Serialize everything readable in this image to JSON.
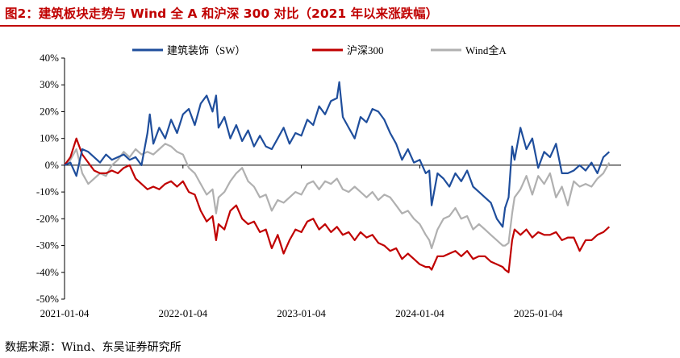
{
  "figure": {
    "title": "图2：建筑板块走势与 Wind 全 A 和沪深 300 对比（2021 年以来涨跌幅）",
    "source": "数据来源：Wind、东吴证券研究所"
  },
  "chart_data": {
    "type": "line",
    "title": "图2：建筑板块走势与 Wind 全 A 和沪深 300 对比（2021 年以来涨跌幅）",
    "xlabel": "",
    "ylabel": "",
    "ylim": [
      -50,
      40
    ],
    "yticks": [
      -50,
      -40,
      -30,
      -20,
      -10,
      0,
      10,
      20,
      30,
      40
    ],
    "ytick_labels": [
      "-50%",
      "-40%",
      "-30%",
      "-20%",
      "-10%",
      "0%",
      "10%",
      "20%",
      "30%",
      "40%"
    ],
    "xlim": [
      2021.0,
      2025.7
    ],
    "xticks": [
      2021.0,
      2022.0,
      2023.0,
      2024.0,
      2025.0
    ],
    "xtick_labels": [
      "2021-01-04",
      "2022-01-04",
      "2023-01-04",
      "2024-01-04",
      "2025-01-04"
    ],
    "legend_position": "top",
    "series": [
      {
        "name": "建筑装饰（SW）",
        "color": "#1f4e9c",
        "x": [
          2021.0,
          2021.05,
          2021.1,
          2021.15,
          2021.2,
          2021.25,
          2021.3,
          2021.35,
          2021.4,
          2021.45,
          2021.5,
          2021.55,
          2021.6,
          2021.65,
          2021.7,
          2021.72,
          2021.75,
          2021.8,
          2021.85,
          2021.9,
          2021.95,
          2022.0,
          2022.05,
          2022.1,
          2022.15,
          2022.2,
          2022.25,
          2022.28,
          2022.3,
          2022.35,
          2022.4,
          2022.45,
          2022.5,
          2022.55,
          2022.6,
          2022.65,
          2022.7,
          2022.75,
          2022.8,
          2022.85,
          2022.9,
          2022.95,
          2023.0,
          2023.05,
          2023.1,
          2023.15,
          2023.2,
          2023.25,
          2023.3,
          2023.32,
          2023.35,
          2023.4,
          2023.45,
          2023.5,
          2023.55,
          2023.6,
          2023.65,
          2023.7,
          2023.75,
          2023.8,
          2023.85,
          2023.9,
          2023.95,
          2024.0,
          2024.05,
          2024.08,
          2024.1,
          2024.15,
          2024.2,
          2024.25,
          2024.3,
          2024.35,
          2024.4,
          2024.45,
          2024.5,
          2024.55,
          2024.6,
          2024.65,
          2024.7,
          2024.72,
          2024.75,
          2024.78,
          2024.8,
          2024.85,
          2024.9,
          2024.95,
          2025.0,
          2025.05,
          2025.1,
          2025.15,
          2025.2,
          2025.25,
          2025.3,
          2025.35,
          2025.4,
          2025.45,
          2025.5,
          2025.55,
          2025.6
        ],
        "values": [
          0,
          1,
          -4,
          6,
          5,
          3,
          1,
          4,
          2,
          3,
          4,
          2,
          3,
          0,
          12,
          19,
          8,
          14,
          10,
          17,
          12,
          19,
          21,
          15,
          23,
          26,
          20,
          26,
          14,
          18,
          10,
          15,
          9,
          13,
          7,
          11,
          7,
          6,
          10,
          14,
          8,
          12,
          11,
          17,
          15,
          22,
          19,
          24,
          25,
          31,
          18,
          14,
          10,
          18,
          16,
          21,
          20,
          17,
          12,
          8,
          2,
          6,
          1,
          2,
          -3,
          -2,
          -15,
          -3,
          -5,
          -8,
          -3,
          -6,
          -2,
          -8,
          -10,
          -12,
          -14,
          -20,
          -23,
          -16,
          -12,
          7,
          2,
          14,
          6,
          10,
          -1,
          5,
          3,
          8,
          -3,
          -3,
          -2,
          0,
          -2,
          1,
          -3,
          3,
          5
        ]
      },
      {
        "name": "沪深300",
        "color": "#c00000",
        "x": [
          2021.0,
          2021.05,
          2021.1,
          2021.15,
          2021.2,
          2021.25,
          2021.3,
          2021.35,
          2021.4,
          2021.45,
          2021.5,
          2021.55,
          2021.6,
          2021.65,
          2021.7,
          2021.75,
          2021.8,
          2021.85,
          2021.9,
          2021.95,
          2022.0,
          2022.05,
          2022.1,
          2022.15,
          2022.2,
          2022.25,
          2022.28,
          2022.3,
          2022.35,
          2022.4,
          2022.45,
          2022.5,
          2022.55,
          2022.6,
          2022.65,
          2022.7,
          2022.75,
          2022.8,
          2022.85,
          2022.9,
          2022.95,
          2023.0,
          2023.05,
          2023.1,
          2023.15,
          2023.2,
          2023.25,
          2023.3,
          2023.35,
          2023.4,
          2023.45,
          2023.5,
          2023.55,
          2023.6,
          2023.65,
          2023.7,
          2023.75,
          2023.8,
          2023.85,
          2023.9,
          2023.95,
          2024.0,
          2024.05,
          2024.08,
          2024.1,
          2024.15,
          2024.2,
          2024.25,
          2024.3,
          2024.35,
          2024.4,
          2024.45,
          2024.5,
          2024.55,
          2024.6,
          2024.65,
          2024.7,
          2024.72,
          2024.75,
          2024.78,
          2024.8,
          2024.85,
          2024.9,
          2024.95,
          2025.0,
          2025.05,
          2025.1,
          2025.15,
          2025.2,
          2025.25,
          2025.3,
          2025.35,
          2025.4,
          2025.45,
          2025.5,
          2025.55,
          2025.6
        ],
        "values": [
          0,
          3,
          10,
          4,
          1,
          -2,
          -3,
          -3,
          -2,
          -3,
          -1,
          0,
          -5,
          -7,
          -9,
          -8,
          -9,
          -7,
          -6,
          -8,
          -6,
          -10,
          -11,
          -17,
          -21,
          -19,
          -28,
          -22,
          -24,
          -17,
          -15,
          -20,
          -22,
          -21,
          -25,
          -24,
          -31,
          -26,
          -33,
          -28,
          -24,
          -25,
          -21,
          -20,
          -24,
          -22,
          -25,
          -23,
          -26,
          -25,
          -28,
          -25,
          -27,
          -26,
          -29,
          -30,
          -32,
          -31,
          -35,
          -33,
          -35,
          -37,
          -38,
          -38,
          -39,
          -34,
          -34,
          -33,
          -32,
          -34,
          -32,
          -35,
          -34,
          -34,
          -36,
          -37,
          -38,
          -39,
          -40,
          -28,
          -24,
          -26,
          -24,
          -27,
          -25,
          -26,
          -26,
          -25,
          -28,
          -27,
          -27,
          -32,
          -28,
          -28,
          -26,
          -25,
          -23
        ]
      },
      {
        "name": "Wind全A",
        "color": "#b0b0b0",
        "x": [
          2021.0,
          2021.05,
          2021.1,
          2021.15,
          2021.2,
          2021.25,
          2021.3,
          2021.35,
          2021.4,
          2021.45,
          2021.5,
          2021.55,
          2021.6,
          2021.65,
          2021.7,
          2021.75,
          2021.8,
          2021.85,
          2021.9,
          2021.95,
          2022.0,
          2022.05,
          2022.1,
          2022.15,
          2022.2,
          2022.25,
          2022.28,
          2022.3,
          2022.35,
          2022.4,
          2022.45,
          2022.5,
          2022.55,
          2022.6,
          2022.65,
          2022.7,
          2022.75,
          2022.8,
          2022.85,
          2022.9,
          2022.95,
          2023.0,
          2023.05,
          2023.1,
          2023.15,
          2023.2,
          2023.25,
          2023.3,
          2023.35,
          2023.4,
          2023.45,
          2023.5,
          2023.55,
          2023.6,
          2023.65,
          2023.7,
          2023.75,
          2023.8,
          2023.85,
          2023.9,
          2023.95,
          2024.0,
          2024.05,
          2024.08,
          2024.1,
          2024.15,
          2024.2,
          2024.25,
          2024.3,
          2024.35,
          2024.4,
          2024.45,
          2024.5,
          2024.55,
          2024.6,
          2024.65,
          2024.7,
          2024.72,
          2024.75,
          2024.78,
          2024.8,
          2024.85,
          2024.9,
          2024.95,
          2025.0,
          2025.05,
          2025.1,
          2025.15,
          2025.2,
          2025.25,
          2025.3,
          2025.35,
          2025.4,
          2025.45,
          2025.5,
          2025.55,
          2025.6
        ],
        "values": [
          0,
          2,
          6,
          -3,
          -7,
          -5,
          -3,
          -4,
          0,
          2,
          5,
          3,
          6,
          4,
          5,
          4,
          6,
          8,
          7,
          5,
          4,
          -1,
          -3,
          -7,
          -11,
          -9,
          -18,
          -12,
          -10,
          -6,
          -3,
          -1,
          -6,
          -8,
          -12,
          -11,
          -17,
          -13,
          -14,
          -12,
          -10,
          -11,
          -7,
          -6,
          -9,
          -6,
          -7,
          -5,
          -9,
          -10,
          -8,
          -10,
          -12,
          -10,
          -13,
          -11,
          -12,
          -15,
          -18,
          -17,
          -20,
          -22,
          -26,
          -28,
          -31,
          -24,
          -20,
          -19,
          -16,
          -20,
          -19,
          -24,
          -22,
          -24,
          -26,
          -28,
          -30,
          -30,
          -29,
          -18,
          -12,
          -9,
          -4,
          -11,
          -4,
          -7,
          -3,
          -12,
          -8,
          -15,
          -6,
          -8,
          -7,
          -8,
          -5,
          -3,
          1
        ]
      }
    ]
  }
}
